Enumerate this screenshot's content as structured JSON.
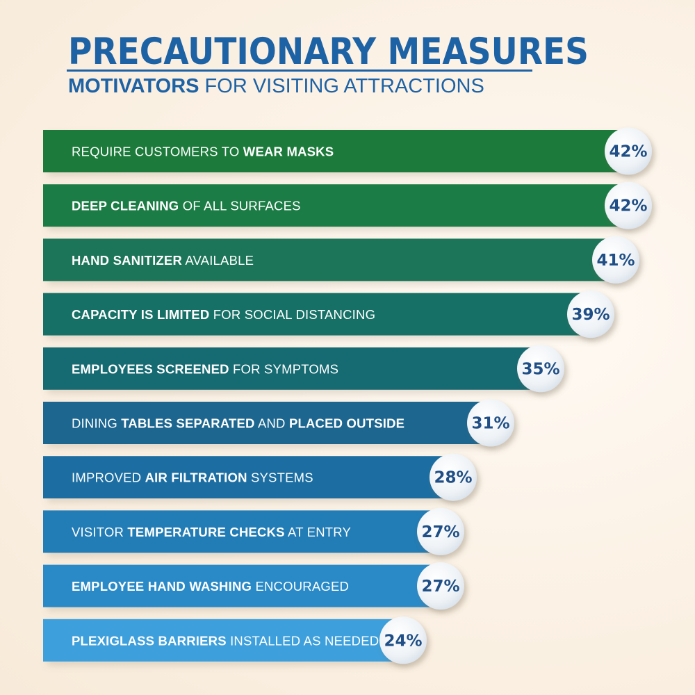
{
  "title": "PRECAUTIONARY MEASURES",
  "subtitle": {
    "bold": "MOTIVATORS",
    "rest": " FOR VISITING ATTRACTIONS"
  },
  "chart_data": {
    "type": "bar",
    "orientation": "horizontal",
    "unit": "%",
    "xlim": [
      0,
      42
    ],
    "grid": false,
    "legend": "none",
    "categories": [
      "REQUIRE CUSTOMERS TO WEAR MASKS",
      "DEEP CLEANING OF ALL SURFACES",
      "HAND SANITIZER AVAILABLE",
      "CAPACITY IS LIMITED FOR SOCIAL DISTANCING",
      "EMPLOYEES SCREENED FOR SYMPTOMS",
      "DINING TABLES SEPARATED AND PLACED OUTSIDE",
      "IMPROVED AIR FILTRATION SYSTEMS",
      "VISITOR TEMPERATURE CHECKS AT ENTRY",
      "EMPLOYEE HAND WASHING ENCOURAGED",
      "PLEXIGLASS BARRIERS INSTALLED AS NEEDED"
    ],
    "values": [
      42,
      42,
      41,
      39,
      35,
      31,
      28,
      27,
      27,
      24
    ],
    "value_labels": [
      "42%",
      "42%",
      "41%",
      "39%",
      "35%",
      "31%",
      "28%",
      "27%",
      "27%",
      "24%"
    ],
    "label_parts": [
      [
        {
          "t": "REQUIRE CUSTOMERS TO ",
          "b": false
        },
        {
          "t": "WEAR MASKS",
          "b": true
        }
      ],
      [
        {
          "t": "DEEP CLEANING",
          "b": true
        },
        {
          "t": " OF ALL SURFACES",
          "b": false
        }
      ],
      [
        {
          "t": "HAND SANITIZER",
          "b": true
        },
        {
          "t": " AVAILABLE",
          "b": false
        }
      ],
      [
        {
          "t": "CAPACITY IS LIMITED",
          "b": true
        },
        {
          "t": " FOR SOCIAL DISTANCING",
          "b": false
        }
      ],
      [
        {
          "t": "EMPLOYEES SCREENED",
          "b": true
        },
        {
          "t": " FOR SYMPTOMS",
          "b": false
        }
      ],
      [
        {
          "t": "DINING ",
          "b": false
        },
        {
          "t": "TABLES SEPARATED",
          "b": true
        },
        {
          "t": " AND ",
          "b": false
        },
        {
          "t": "PLACED OUTSIDE",
          "b": true
        }
      ],
      [
        {
          "t": "IMPROVED ",
          "b": false
        },
        {
          "t": "AIR FILTRATION",
          "b": true
        },
        {
          "t": " SYSTEMS",
          "b": false
        }
      ],
      [
        {
          "t": "VISITOR ",
          "b": false
        },
        {
          "t": "TEMPERATURE CHECKS",
          "b": true
        },
        {
          "t": " AT ENTRY",
          "b": false
        }
      ],
      [
        {
          "t": "EMPLOYEE HAND WASHING",
          "b": true
        },
        {
          "t": " ENCOURAGED",
          "b": false
        }
      ],
      [
        {
          "t": "PLEXIGLASS BARRIERS",
          "b": true
        },
        {
          "t": " INSTALLED AS NEEDED",
          "b": false
        }
      ]
    ],
    "colors": [
      "#1f7a3a",
      "#1d7b44",
      "#1b7558",
      "#196f66",
      "#196a72",
      "#1a6690",
      "#1f6ea2",
      "#247cb5",
      "#2b8ac7",
      "#3e9fdb"
    ]
  }
}
